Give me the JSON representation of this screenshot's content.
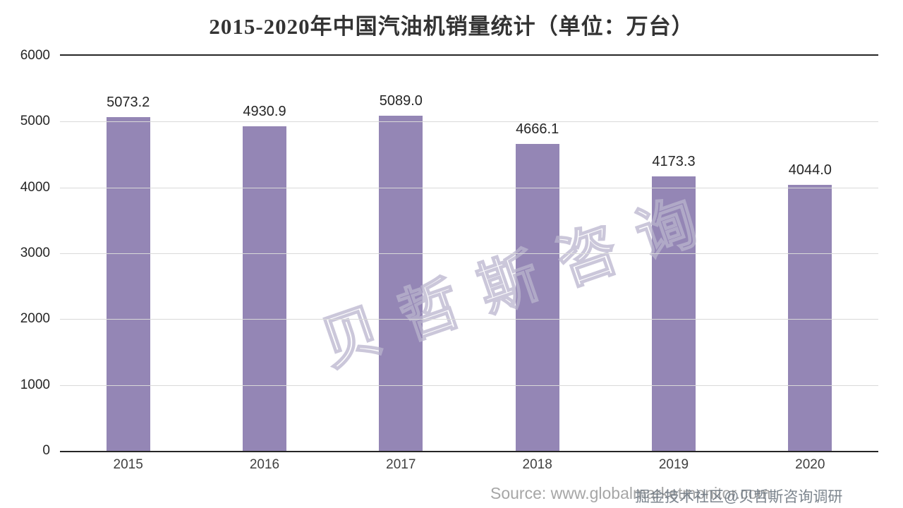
{
  "chart_data": {
    "type": "bar",
    "title": "2015-2020年中国汽油机销量统计（单位：万台）",
    "categories": [
      "2015",
      "2016",
      "2017",
      "2018",
      "2019",
      "2020"
    ],
    "values": [
      5073.2,
      4930.9,
      5089.0,
      4666.1,
      4173.3,
      4044.0
    ],
    "value_labels": [
      "5073.2",
      "4930.9",
      "5089.0",
      "4666.1",
      "4173.3",
      "4044.0"
    ],
    "xlabel": "",
    "ylabel": "",
    "ylim": [
      0,
      6000
    ],
    "yticks": [
      0,
      1000,
      2000,
      3000,
      4000,
      5000,
      6000
    ],
    "bar_color": "#9486b5",
    "grid": true,
    "legend": false
  },
  "watermarks": {
    "center": "贝哲斯咨询",
    "bottom": "掘金技术社区@贝哲斯咨询调研"
  },
  "footer": {
    "source": "Source: www.globalmarketmonitor.com"
  }
}
